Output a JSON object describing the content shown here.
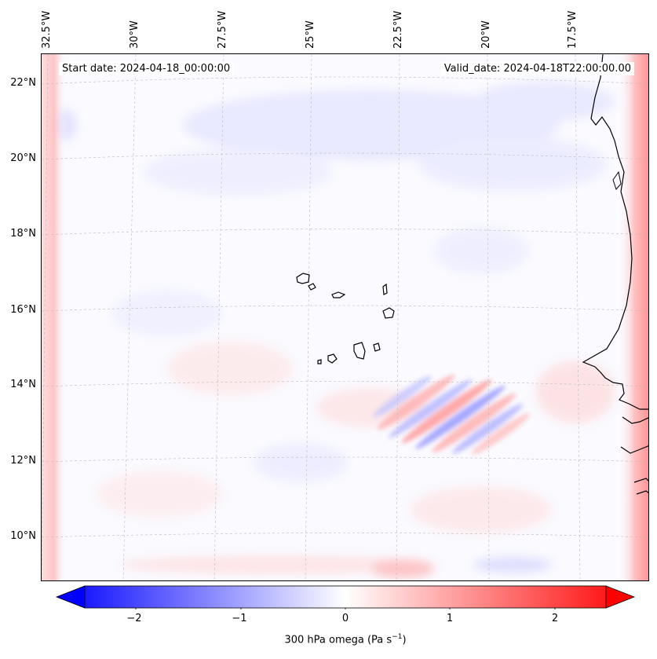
{
  "map": {
    "start_date": "Start date: 2024-04-18_00:00:00",
    "valid_date": "Valid_date: 2024-04-18T22:00:00.00",
    "lon_labels": [
      "32.5°W",
      "30°W",
      "27.5°W",
      "25°W",
      "22.5°W",
      "20°W",
      "17.5°W"
    ],
    "lat_labels": [
      "22°N",
      "20°N",
      "18°N",
      "16°N",
      "14°N",
      "12°N",
      "10°N"
    ],
    "domain": {
      "lon_min": -32.7,
      "lon_max": -15.5,
      "lat_min": 8.9,
      "lat_max": 22.8
    }
  },
  "colorbar": {
    "label": "300 hPa omega (Pa s",
    "label_sup": "−1",
    "label_close": ")",
    "ticks": [
      "−2",
      "−1",
      "0",
      "1",
      "2"
    ],
    "min": -2.5,
    "max": 2.5,
    "colormap": "bwr",
    "low_color": "#0000ff",
    "mid_color": "#ffffff",
    "high_color": "#ff0000"
  }
}
